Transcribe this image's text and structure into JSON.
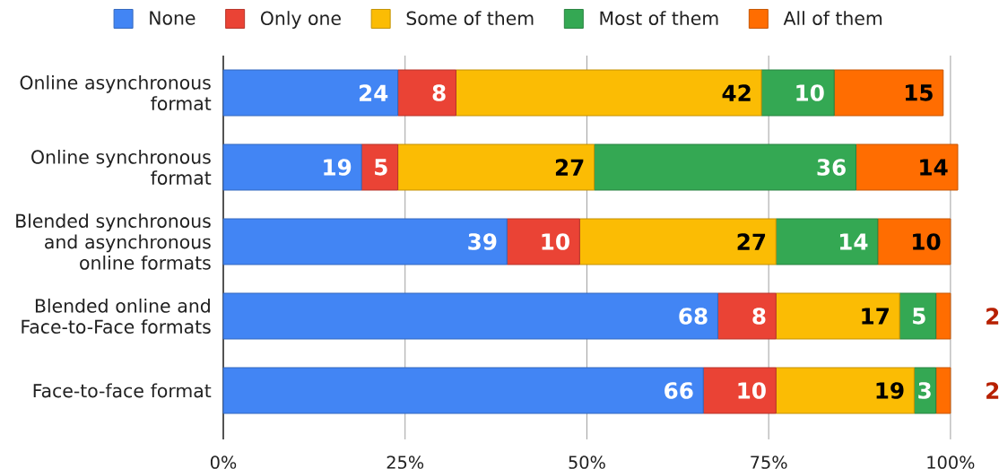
{
  "chart_data": {
    "type": "bar",
    "orientation": "horizontal",
    "stacked": true,
    "categories": [
      "Online asynchronous format",
      "Online synchronous format",
      "Blended synchronous and asynchronous online formats",
      "Blended online and Face-to-Face formats",
      "Face-to-face format"
    ],
    "series": [
      {
        "name": "None",
        "color": "#4285f4",
        "values": [
          24,
          19,
          39,
          68,
          66
        ]
      },
      {
        "name": "Only one",
        "color": "#ea4335",
        "values": [
          8,
          5,
          10,
          8,
          10
        ]
      },
      {
        "name": "Some of them",
        "color": "#fbbc04",
        "values": [
          42,
          27,
          27,
          17,
          19
        ]
      },
      {
        "name": "Most of them",
        "color": "#34a853",
        "values": [
          10,
          36,
          14,
          5,
          3
        ]
      },
      {
        "name": "All of them",
        "color": "#ff6d01",
        "values": [
          15,
          14,
          10,
          2,
          2
        ]
      }
    ],
    "xlim": [
      0,
      101
    ],
    "xticks": [
      {
        "value": 0,
        "label": "0%"
      },
      {
        "value": 25,
        "label": "25%"
      },
      {
        "value": 50,
        "label": "50%"
      },
      {
        "value": 75,
        "label": "75%"
      },
      {
        "value": 100,
        "label": "100%"
      }
    ],
    "grid": "x",
    "legend": "top",
    "data_labels": true
  }
}
